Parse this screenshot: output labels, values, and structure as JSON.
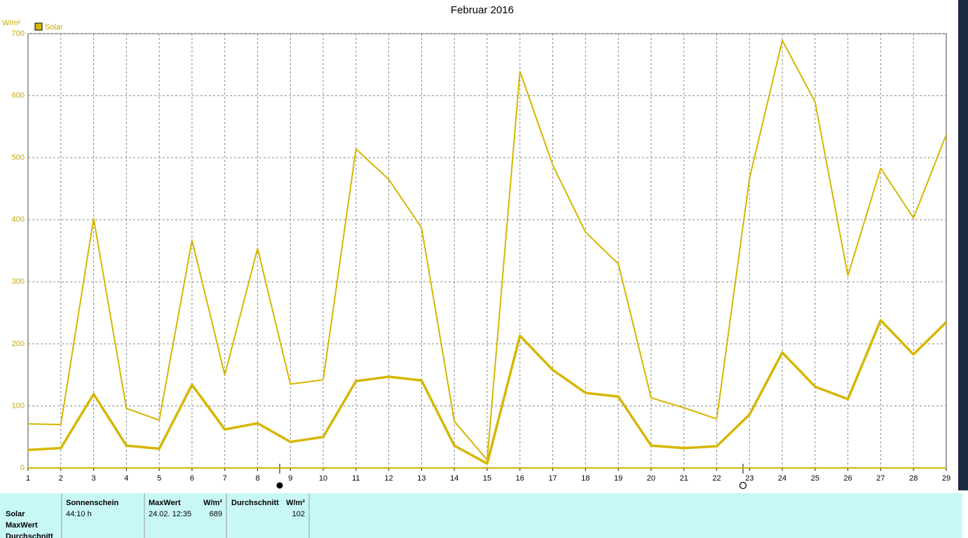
{
  "chart_data": {
    "type": "line",
    "title": "Februar 2016",
    "y_unit": "W/m²",
    "legend": {
      "label": "Solar",
      "color": "#d6b600"
    },
    "categories": [
      "1",
      "2",
      "3",
      "4",
      "5",
      "6",
      "7",
      "8",
      "9",
      "10",
      "11",
      "12",
      "13",
      "14",
      "15",
      "16",
      "17",
      "18",
      "19",
      "20",
      "21",
      "22",
      "23",
      "24",
      "25",
      "26",
      "27",
      "28",
      "29"
    ],
    "series": [
      {
        "color": "#d6b600",
        "width": 2,
        "values": [
          71,
          70,
          402,
          96,
          77,
          367,
          150,
          354,
          135,
          142,
          514,
          465,
          387,
          75,
          13,
          639,
          488,
          380,
          329,
          113,
          97,
          79,
          467,
          689,
          590,
          310,
          483,
          403,
          537
        ]
      },
      {
        "color": "#d6b600",
        "width": 3.5,
        "values": [
          29,
          32,
          119,
          36,
          31,
          134,
          62,
          72,
          42,
          50,
          140,
          147,
          141,
          36,
          7,
          213,
          158,
          121,
          115,
          36,
          32,
          35,
          86,
          186,
          131,
          111,
          238,
          183,
          235
        ]
      }
    ],
    "ylim": [
      0,
      700
    ],
    "yticks": [
      0,
      100,
      200,
      300,
      400,
      500,
      600,
      700
    ],
    "grid": true
  },
  "table": {
    "row_labels": [
      "Solar",
      "MaxWert",
      "Durchschnitt"
    ],
    "columns": [
      {
        "header": "Sonnenschein",
        "value": "44:10 h"
      },
      {
        "header": "MaxWert",
        "unit": "W/m²",
        "date": "24.02. 12:35",
        "value": 689
      },
      {
        "header": "Durchschnitt",
        "unit": "W/m²",
        "value": 102
      }
    ]
  }
}
